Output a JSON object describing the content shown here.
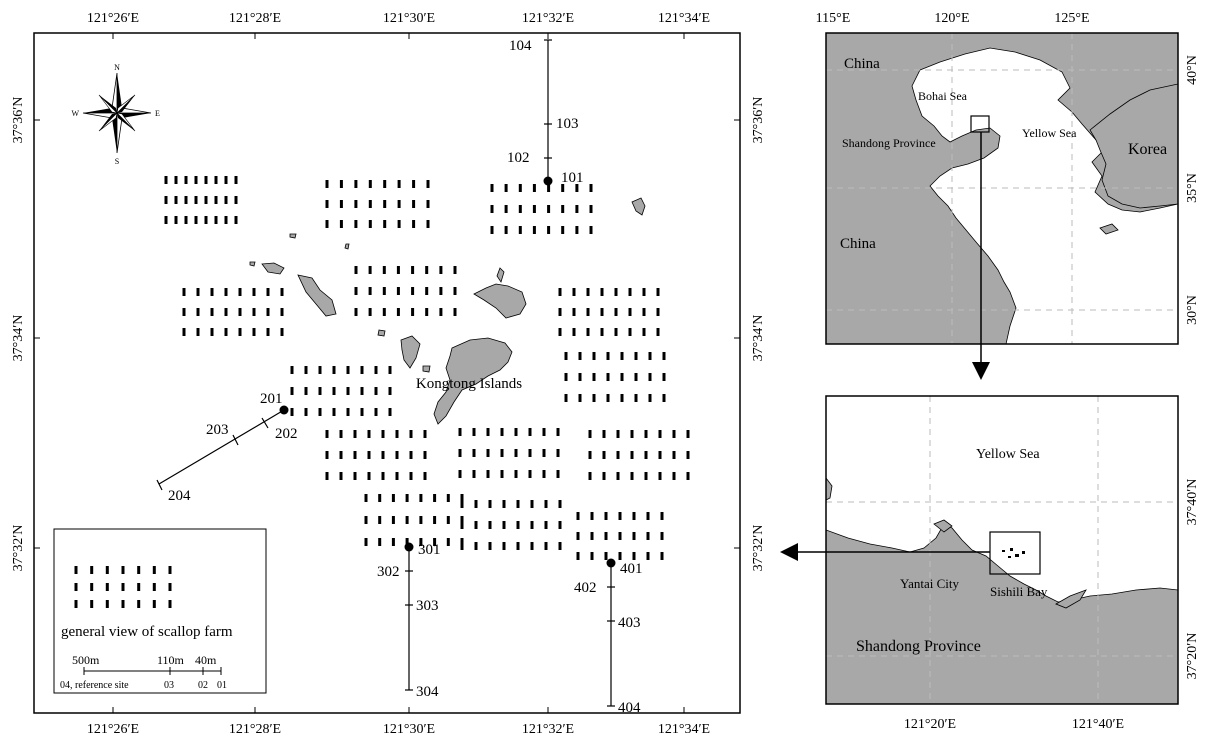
{
  "main_map": {
    "top_lon_ticks": [
      "121°26′E",
      "121°28′E",
      "121°30′E",
      "121°32′E",
      "121°34′E"
    ],
    "bottom_lon_ticks": [
      "121°26′E",
      "121°28′E",
      "121°30′E",
      "121°32′E",
      "121°34′E"
    ],
    "left_lat_ticks": [
      "37°36′N",
      "37°34′N",
      "37°32′N"
    ],
    "right_lat_ticks": [
      "37°36′N",
      "37°34′N",
      "37°32′N"
    ],
    "compass": {
      "n": "N",
      "s": "S",
      "e": "E",
      "w": "W"
    },
    "island_label": "Kongtong Islands",
    "station_labels": [
      "101",
      "102",
      "103",
      "104",
      "201",
      "202",
      "203",
      "204",
      "301",
      "302",
      "303",
      "304",
      "401",
      "402",
      "403",
      "404"
    ],
    "legend": {
      "caption": "general view of scallop farm",
      "scale_labels": [
        "500m",
        "110m",
        "40m"
      ],
      "site_labels": [
        "04, reference site",
        "03",
        "02",
        "01"
      ]
    }
  },
  "overview_map": {
    "top_lon_ticks": [
      "115°E",
      "120°E",
      "125°E"
    ],
    "right_lat_ticks": [
      "40°N",
      "35°N",
      "30°N"
    ],
    "place_labels": [
      "China",
      "Bohai Sea",
      "Yellow Sea",
      "Shandong Province",
      "Korea",
      "China"
    ]
  },
  "detail_map": {
    "bottom_lon_ticks": [
      "121°20′E",
      "121°40′E"
    ],
    "right_lat_ticks": [
      "37°40′N",
      "37°20′N"
    ],
    "place_labels": [
      "Yellow Sea",
      "Yantai City",
      "Sishili Bay",
      "Shandong Province"
    ]
  },
  "colors": {
    "land": "#a8a8a8",
    "ink": "#000000",
    "grid": "#bbbbbb"
  }
}
